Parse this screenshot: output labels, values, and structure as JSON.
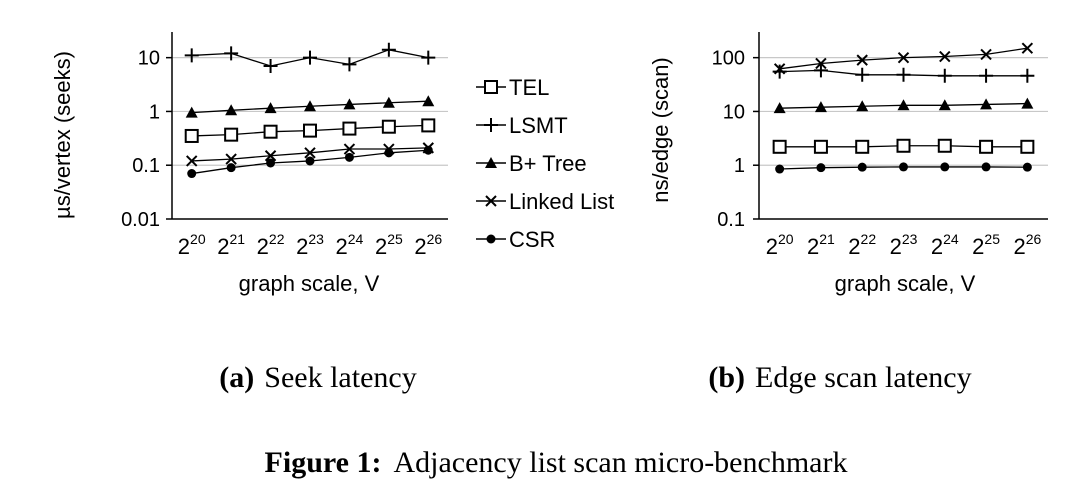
{
  "chart_data": [
    {
      "type": "line",
      "id": "a",
      "subcaption_label": "(a)",
      "subcaption_text": "Seek latency",
      "ylabel": "µs/vertex (seeks)",
      "xlabel": "graph scale, V",
      "yscale": "log",
      "ylim": [
        0.01,
        30
      ],
      "yticks": [
        "0.01",
        "0.1",
        "1",
        "10"
      ],
      "x_base": "2",
      "x_exponents": [
        "20",
        "21",
        "22",
        "23",
        "24",
        "25",
        "26"
      ],
      "series": [
        {
          "name": "TEL",
          "marker": "square",
          "values": [
            0.35,
            0.37,
            0.42,
            0.44,
            0.48,
            0.52,
            0.55
          ]
        },
        {
          "name": "LSMT",
          "marker": "plus",
          "values": [
            11,
            12,
            7,
            10,
            7.5,
            14,
            10
          ]
        },
        {
          "name": "B+ Tree",
          "marker": "triangle",
          "values": [
            0.95,
            1.05,
            1.15,
            1.25,
            1.35,
            1.45,
            1.55
          ]
        },
        {
          "name": "Linked List",
          "marker": "cross",
          "values": [
            0.12,
            0.13,
            0.15,
            0.17,
            0.2,
            0.2,
            0.21
          ]
        },
        {
          "name": "CSR",
          "marker": "circle",
          "values": [
            0.07,
            0.09,
            0.11,
            0.12,
            0.14,
            0.17,
            0.19
          ]
        }
      ]
    },
    {
      "type": "line",
      "id": "b",
      "subcaption_label": "(b)",
      "subcaption_text": "Edge scan latency",
      "ylabel": "ns/edge (scan)",
      "xlabel": "graph scale, V",
      "yscale": "log",
      "ylim": [
        0.1,
        300
      ],
      "yticks": [
        "0.1",
        "1",
        "10",
        "100"
      ],
      "x_base": "2",
      "x_exponents": [
        "20",
        "21",
        "22",
        "23",
        "24",
        "25",
        "26"
      ],
      "series": [
        {
          "name": "TEL",
          "marker": "square",
          "values": [
            2.2,
            2.2,
            2.2,
            2.3,
            2.3,
            2.2,
            2.2
          ]
        },
        {
          "name": "LSMT",
          "marker": "plus",
          "values": [
            55,
            58,
            48,
            48,
            46,
            46,
            46
          ]
        },
        {
          "name": "B+ Tree",
          "marker": "triangle",
          "values": [
            11.5,
            12,
            12.5,
            13,
            13,
            13.5,
            14
          ]
        },
        {
          "name": "Linked List",
          "marker": "cross",
          "values": [
            62,
            78,
            90,
            100,
            105,
            115,
            150
          ]
        },
        {
          "name": "CSR",
          "marker": "circle",
          "values": [
            0.85,
            0.9,
            0.92,
            0.93,
            0.93,
            0.93,
            0.92
          ]
        }
      ]
    }
  ],
  "legend": [
    "TEL",
    "LSMT",
    "B+ Tree",
    "Linked List",
    "CSR"
  ],
  "figure_caption": {
    "label": "Figure 1:",
    "text": "Adjacency list scan micro-benchmark"
  }
}
